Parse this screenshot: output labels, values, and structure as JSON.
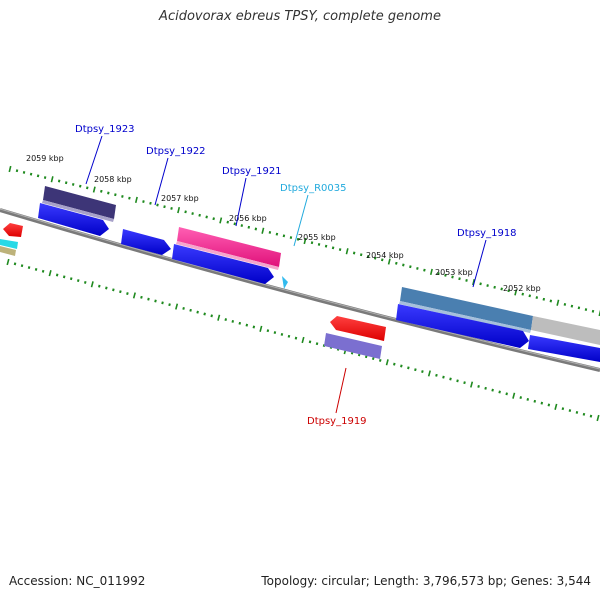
{
  "title": "Acidovorax ebreus TPSY, complete genome",
  "footer": {
    "accession": "Accession: NC_011992",
    "summary": "Topology: circular; Length: 3,796,573 bp; Genes: 3,544"
  },
  "colors": {
    "blue": "#0000ee",
    "red": "#ff0000",
    "pink": "#ff1493",
    "navy": "#3d3577",
    "slate": "#4a7fb0",
    "gray": "#bdbdbd",
    "lavender": "#7b6fd0",
    "cyan": "#33bbee",
    "tick": "#1f8a1f"
  },
  "kbp_labels": [
    "2059 kbp",
    "2058 kbp",
    "2057 kbp",
    "2056 kbp",
    "2055 kbp",
    "2054 kbp",
    "2053 kbp",
    "2052 kbp"
  ],
  "gene_labels": [
    {
      "text": "Dtpsy_1923",
      "color": "#0000cc"
    },
    {
      "text": "Dtpsy_1922",
      "color": "#0000cc"
    },
    {
      "text": "Dtpsy_1921",
      "color": "#0000cc"
    },
    {
      "text": "Dtpsy_R0035",
      "color": "#22aadd"
    },
    {
      "text": "Dtpsy_1918",
      "color": "#0000cc"
    },
    {
      "text": "Dtpsy_1919",
      "color": "#cc0000"
    }
  ]
}
